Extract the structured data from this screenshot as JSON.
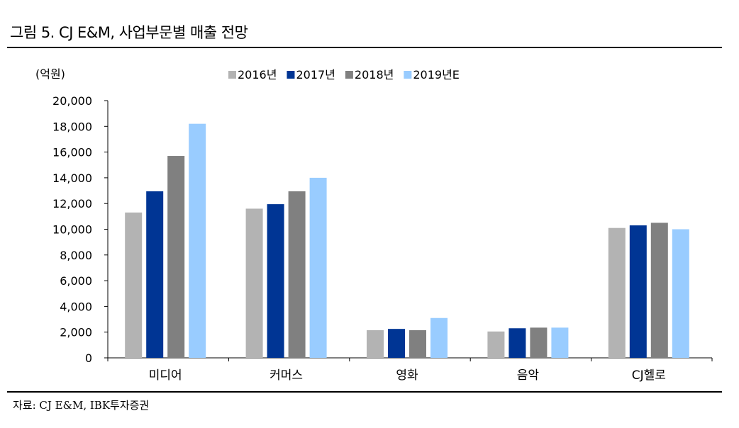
{
  "title": "그림 5. CJ E&M, 사업부문별 매출 전망",
  "source": "자료: CJ E&M, IBK투자증권",
  "chart_data": {
    "type": "bar",
    "title": "그림 5. CJ E&M, 사업부문별 매출 전망",
    "ylabel": "(억원)",
    "xlabel": "",
    "ylim": [
      0,
      20000
    ],
    "yticks": [
      0,
      2000,
      4000,
      6000,
      8000,
      10000,
      12000,
      14000,
      16000,
      18000,
      20000
    ],
    "ytick_labels": [
      "0",
      "2,000",
      "4,000",
      "6,000",
      "8,000",
      "10,000",
      "12,000",
      "14,000",
      "16,000",
      "18,000",
      "20,000"
    ],
    "categories": [
      "미디어",
      "커머스",
      "영화",
      "음악",
      "CJ헬로"
    ],
    "legend_position": "top",
    "grid": false,
    "series": [
      {
        "name": "2016년",
        "color": "#b3b3b3",
        "values": [
          11300,
          11600,
          2150,
          2050,
          10100
        ]
      },
      {
        "name": "2017년",
        "color": "#003594",
        "values": [
          12950,
          11950,
          2250,
          2300,
          10300
        ]
      },
      {
        "name": "2018년",
        "color": "#808080",
        "values": [
          15700,
          12950,
          2150,
          2350,
          10500
        ]
      },
      {
        "name": "2019년E",
        "color": "#99ccff",
        "values": [
          18200,
          14000,
          3100,
          2350,
          10000
        ]
      }
    ]
  }
}
